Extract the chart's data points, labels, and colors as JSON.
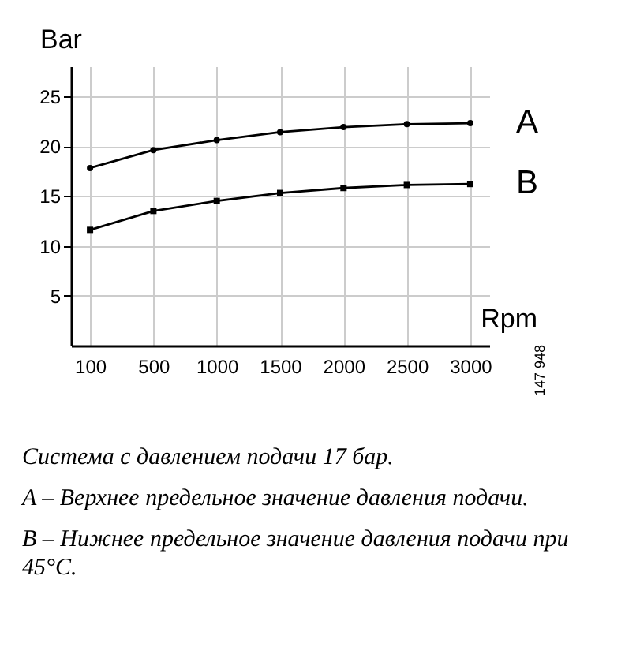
{
  "chart_data": {
    "type": "line",
    "xlabel": "Rpm",
    "ylabel": "Bar",
    "categories": [
      "100",
      "500",
      "1000",
      "1500",
      "2000",
      "2500",
      "3000"
    ],
    "ylim": [
      0,
      28
    ],
    "yticks": [
      5,
      10,
      15,
      20,
      25
    ],
    "grid": true,
    "series": [
      {
        "name": "A",
        "color": "#000000",
        "marker": "circle",
        "values": [
          17.8,
          19.6,
          20.6,
          21.4,
          21.9,
          22.2,
          22.3
        ]
      },
      {
        "name": "B",
        "color": "#000000",
        "marker": "square",
        "values": [
          11.6,
          13.5,
          14.5,
          15.3,
          15.8,
          16.1,
          16.2
        ]
      }
    ],
    "annotations": [
      "147 948",
      "Система с давлением подачи 17 бар.",
      "A – Верхнее предельное значение давления подачи.",
      "B – Нижнее предельное значение давления подачи при 45°C."
    ]
  }
}
